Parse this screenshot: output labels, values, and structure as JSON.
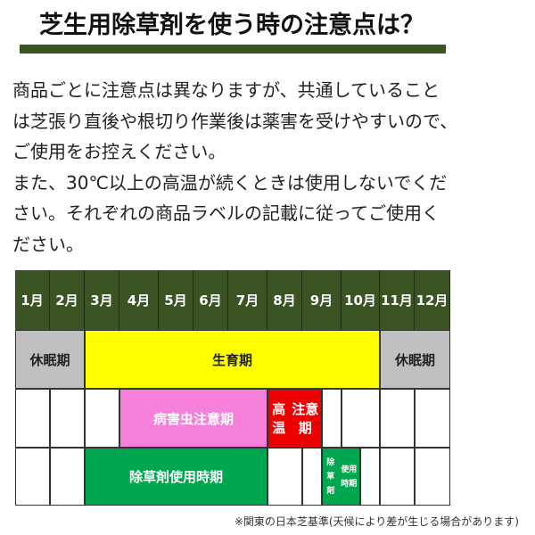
{
  "title": "芝生用除草剤を使う時の注意点は？",
  "paragraph_lines": [
    "商品ごとに注意点は異なりますが、共通していること",
    "は芝張り直後や根切り作業後は薬害を受けやすいので、",
    "ご使用をお控えください。",
    "また、30℃以上の高温が続くときは使用しないでくだ",
    "さい。それぞれの商品ラベルの記載に従ってご使用く",
    "ださい。"
  ],
  "table": {
    "months": [
      "1月",
      "2月",
      "3月",
      "4月",
      "5月",
      "6月",
      "7月",
      "8月",
      "9月",
      "10月",
      "11月",
      "12月"
    ],
    "dormant": "休眠期",
    "growth": "生育期",
    "pest": "病害虫注意期",
    "heat_line1": "高温",
    "heat_line2": "注意期",
    "herbicide": "除草剤使用時期",
    "herbicide2_line1": "除草剤",
    "herbicide2_line2": "使用時期"
  },
  "colors": {
    "header": "#3b5423",
    "dormant": "#c0c0c0",
    "growth": "#ffff00",
    "pest": "#f57fd9",
    "heat": "#ee0000",
    "herbicide": "#00a650"
  },
  "footnote": "※関東の日本芝基準(天候により差が生じる場合があります)"
}
